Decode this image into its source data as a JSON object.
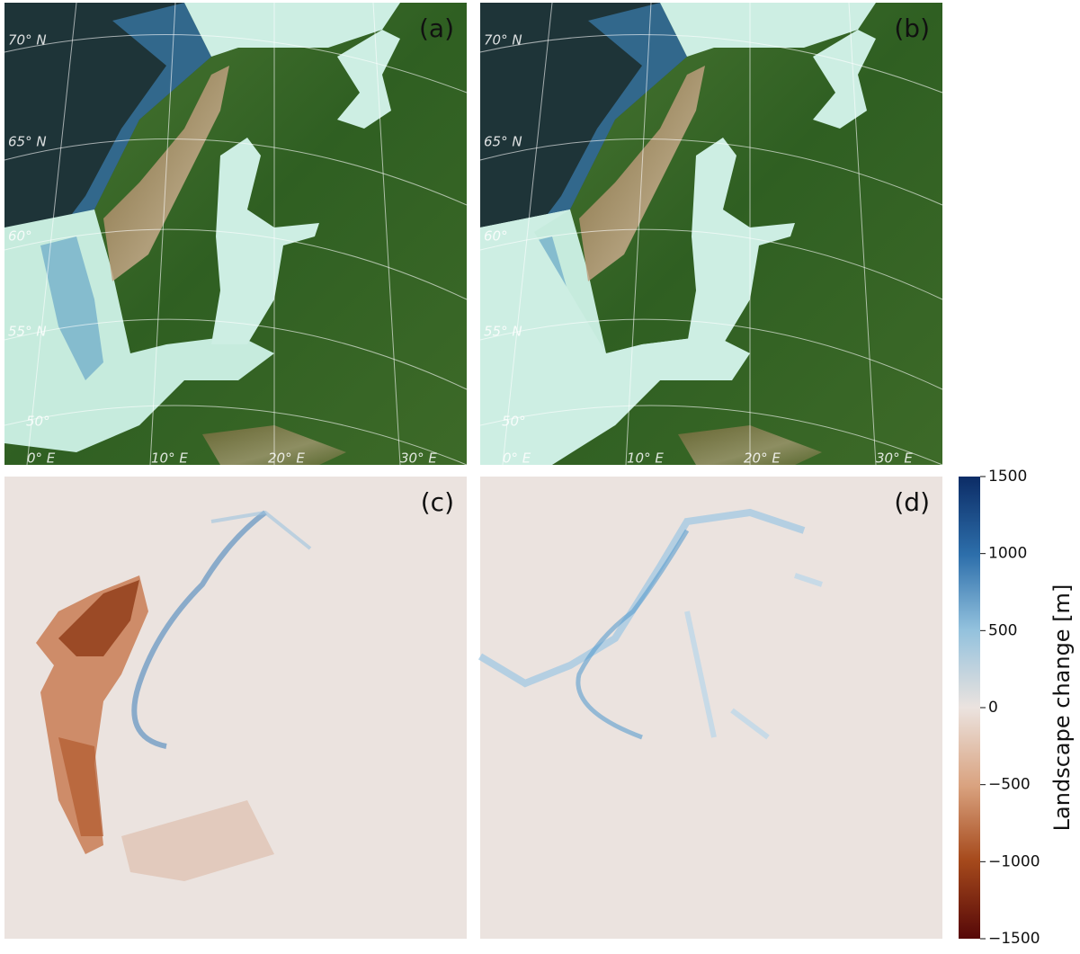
{
  "panels": [
    {
      "label": "(a)",
      "lat_labels": [
        "70° N",
        "65° N",
        "60°",
        "55° N",
        "50°"
      ],
      "lon_labels": [
        "0° E",
        "10° E",
        "20° E",
        "30° E"
      ]
    },
    {
      "label": "(b)",
      "lat_labels": [
        "70° N",
        "65° N",
        "60°",
        "55° N",
        "50°"
      ],
      "lon_labels": [
        "0° E",
        "10° E",
        "20° E",
        "30° E"
      ]
    },
    {
      "label": "(c)"
    },
    {
      "label": "(d)"
    }
  ],
  "colorbar": {
    "label": "Landscape change [m]",
    "lim": [
      -1500,
      1500
    ],
    "ticks": [
      {
        "value": 1500,
        "label": "1500"
      },
      {
        "value": 1000,
        "label": "1000"
      },
      {
        "value": 500,
        "label": "500"
      },
      0,
      {
        "value": -500,
        "label": "−500"
      },
      {
        "value": -1000,
        "label": "−1000"
      },
      {
        "value": -1500,
        "label": "−1500"
      }
    ]
  }
}
